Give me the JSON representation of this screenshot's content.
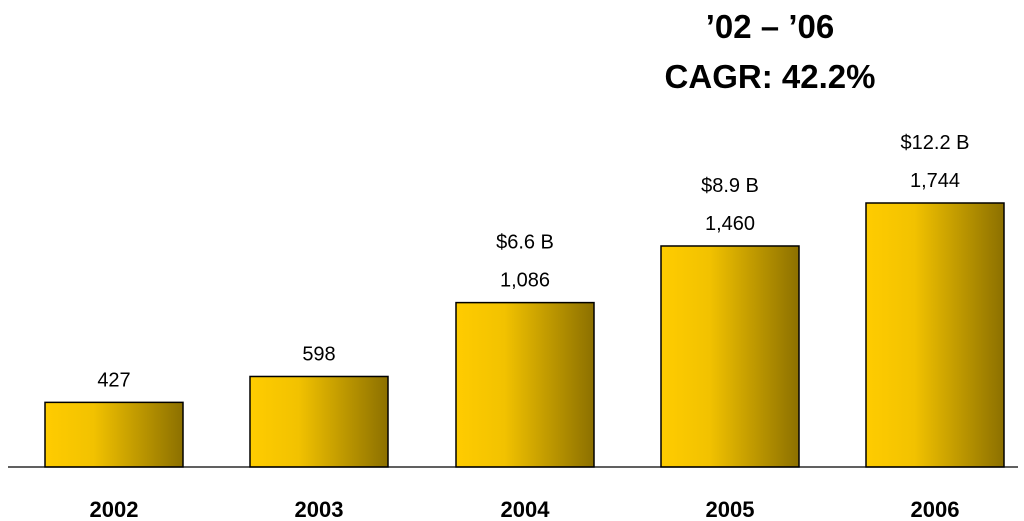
{
  "chart_data": {
    "type": "bar",
    "categories": [
      "2002",
      "2003",
      "2004",
      "2005",
      "2006"
    ],
    "values": [
      427,
      598,
      1086,
      1460,
      1744
    ],
    "secondary_labels": [
      "",
      "",
      "$6.6 B",
      "$8.9 B",
      "$12.2 B"
    ],
    "annotation": {
      "line1": "’02 – ’06",
      "line2": "CAGR: 42.2%"
    },
    "title": "",
    "xlabel": "",
    "ylabel": "",
    "ylim": [
      0,
      1950
    ],
    "grid": false,
    "colors": {
      "bar_light": "#FFCC00",
      "bar_dark": "#8C7000",
      "outline": "#000000"
    }
  }
}
